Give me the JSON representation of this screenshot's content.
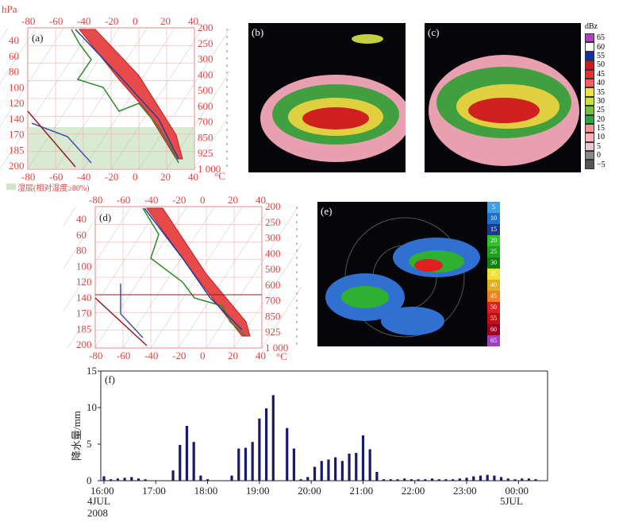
{
  "panel_a": {
    "label": "(a)",
    "unit_left": "hPa",
    "unit_right": "°C",
    "top_ticks": [
      "-80",
      "-60",
      "-40",
      "-20",
      "0",
      "20",
      "40"
    ],
    "bottom_ticks": [
      "-80",
      "-60",
      "-40",
      "-20",
      "0",
      "20",
      "40"
    ],
    "left_ticks": [
      "40",
      "60",
      "80",
      "100",
      "120",
      "140",
      "170",
      "185",
      "200"
    ],
    "right_ticks": [
      "200",
      "250",
      "300",
      "400",
      "500",
      "600",
      "700",
      "850",
      "925",
      "1 000"
    ],
    "legend": "湿层(相对湿度≥80%)"
  },
  "panel_b": {
    "label": "(b)"
  },
  "panel_c": {
    "label": "(c)"
  },
  "dbz_scale": {
    "unit": "dBz",
    "levels": [
      "65",
      "60",
      "55",
      "50",
      "45",
      "40",
      "35",
      "30",
      "25",
      "20",
      "15",
      "10",
      "5",
      "0",
      "−5"
    ],
    "colors": [
      "#b040c0",
      "#ffffff",
      "#1a2aa0",
      "#d01a1a",
      "#e83030",
      "#f06060",
      "#f0e040",
      "#c8e040",
      "#70c040",
      "#30a040",
      "#ff9090",
      "#ffb0b8",
      "#e8c8d0",
      "#888888",
      "#555555"
    ]
  },
  "panel_d": {
    "label": "(d)",
    "top_ticks": [
      "-80",
      "-60",
      "-40",
      "-20",
      "0",
      "20",
      "40"
    ],
    "bottom_ticks": [
      "-80",
      "-60",
      "-40",
      "-20",
      "0",
      "20",
      "40"
    ],
    "left_ticks": [
      "40",
      "60",
      "80",
      "100",
      "120",
      "140",
      "170",
      "185",
      "200"
    ],
    "right_ticks": [
      "200",
      "250",
      "300",
      "400",
      "500",
      "600",
      "700",
      "850",
      "925",
      "1 000"
    ],
    "unit_right": "°C"
  },
  "panel_e": {
    "label": "(e)",
    "scale": [
      "5",
      "10",
      "15",
      "20",
      "25",
      "30",
      "35",
      "40",
      "45",
      "50",
      "55",
      "60",
      "65"
    ],
    "scale_colors": [
      "#40a0e0",
      "#2070d0",
      "#1a3a90",
      "#30c030",
      "#20a020",
      "#108010",
      "#f0e030",
      "#e0b020",
      "#f08020",
      "#e02020",
      "#c01010",
      "#a00020",
      "#a040c0"
    ]
  },
  "panel_f": {
    "label": "(f)",
    "ylabel": "降水量/mm",
    "yticks": [
      "0",
      "5",
      "10",
      "15"
    ],
    "xticks": [
      "16:00",
      "17:00",
      "18:00",
      "19:00",
      "20:00",
      "21:00",
      "22:00",
      "23:00",
      "00:00"
    ],
    "date_left": "4JUL",
    "year": "2008",
    "date_right": "5JUL"
  },
  "chart_data": {
    "type": "bar",
    "title": "",
    "xlabel": "",
    "ylabel": "降水量/mm",
    "ylim": [
      0,
      15
    ],
    "xrange_minutes": [
      0,
      510
    ],
    "x_minutes_since_1600": [
      0,
      8,
      16,
      24,
      32,
      40,
      48,
      80,
      88,
      96,
      104,
      112,
      120,
      148,
      156,
      164,
      172,
      180,
      188,
      196,
      212,
      220,
      228,
      236,
      244,
      252,
      260,
      268,
      276,
      284,
      292,
      300,
      308,
      316,
      324,
      332,
      340,
      348,
      356,
      364,
      372,
      380,
      388,
      396,
      404,
      412,
      420,
      428,
      436,
      444,
      452,
      460,
      468,
      476,
      484,
      492,
      500
    ],
    "values": [
      0.6,
      0.2,
      0.3,
      0.4,
      0.5,
      0.3,
      0.2,
      1.4,
      4.9,
      7.5,
      5.3,
      0.7,
      0.2,
      0.7,
      4.4,
      4.5,
      5.3,
      8.5,
      9.9,
      11.7,
      7.2,
      4.4,
      0.2,
      0.5,
      1.9,
      2.7,
      2.9,
      3.2,
      2.7,
      3.7,
      3.8,
      6.2,
      4.3,
      1.2,
      0.2,
      0.2,
      0.2,
      0.3,
      0.2,
      0.2,
      0.2,
      0.3,
      0.2,
      0.2,
      0.2,
      0.3,
      0.4,
      0.6,
      0.7,
      0.8,
      0.7,
      0.5,
      0.3,
      0.2,
      0.3,
      0.3,
      0.2
    ]
  }
}
